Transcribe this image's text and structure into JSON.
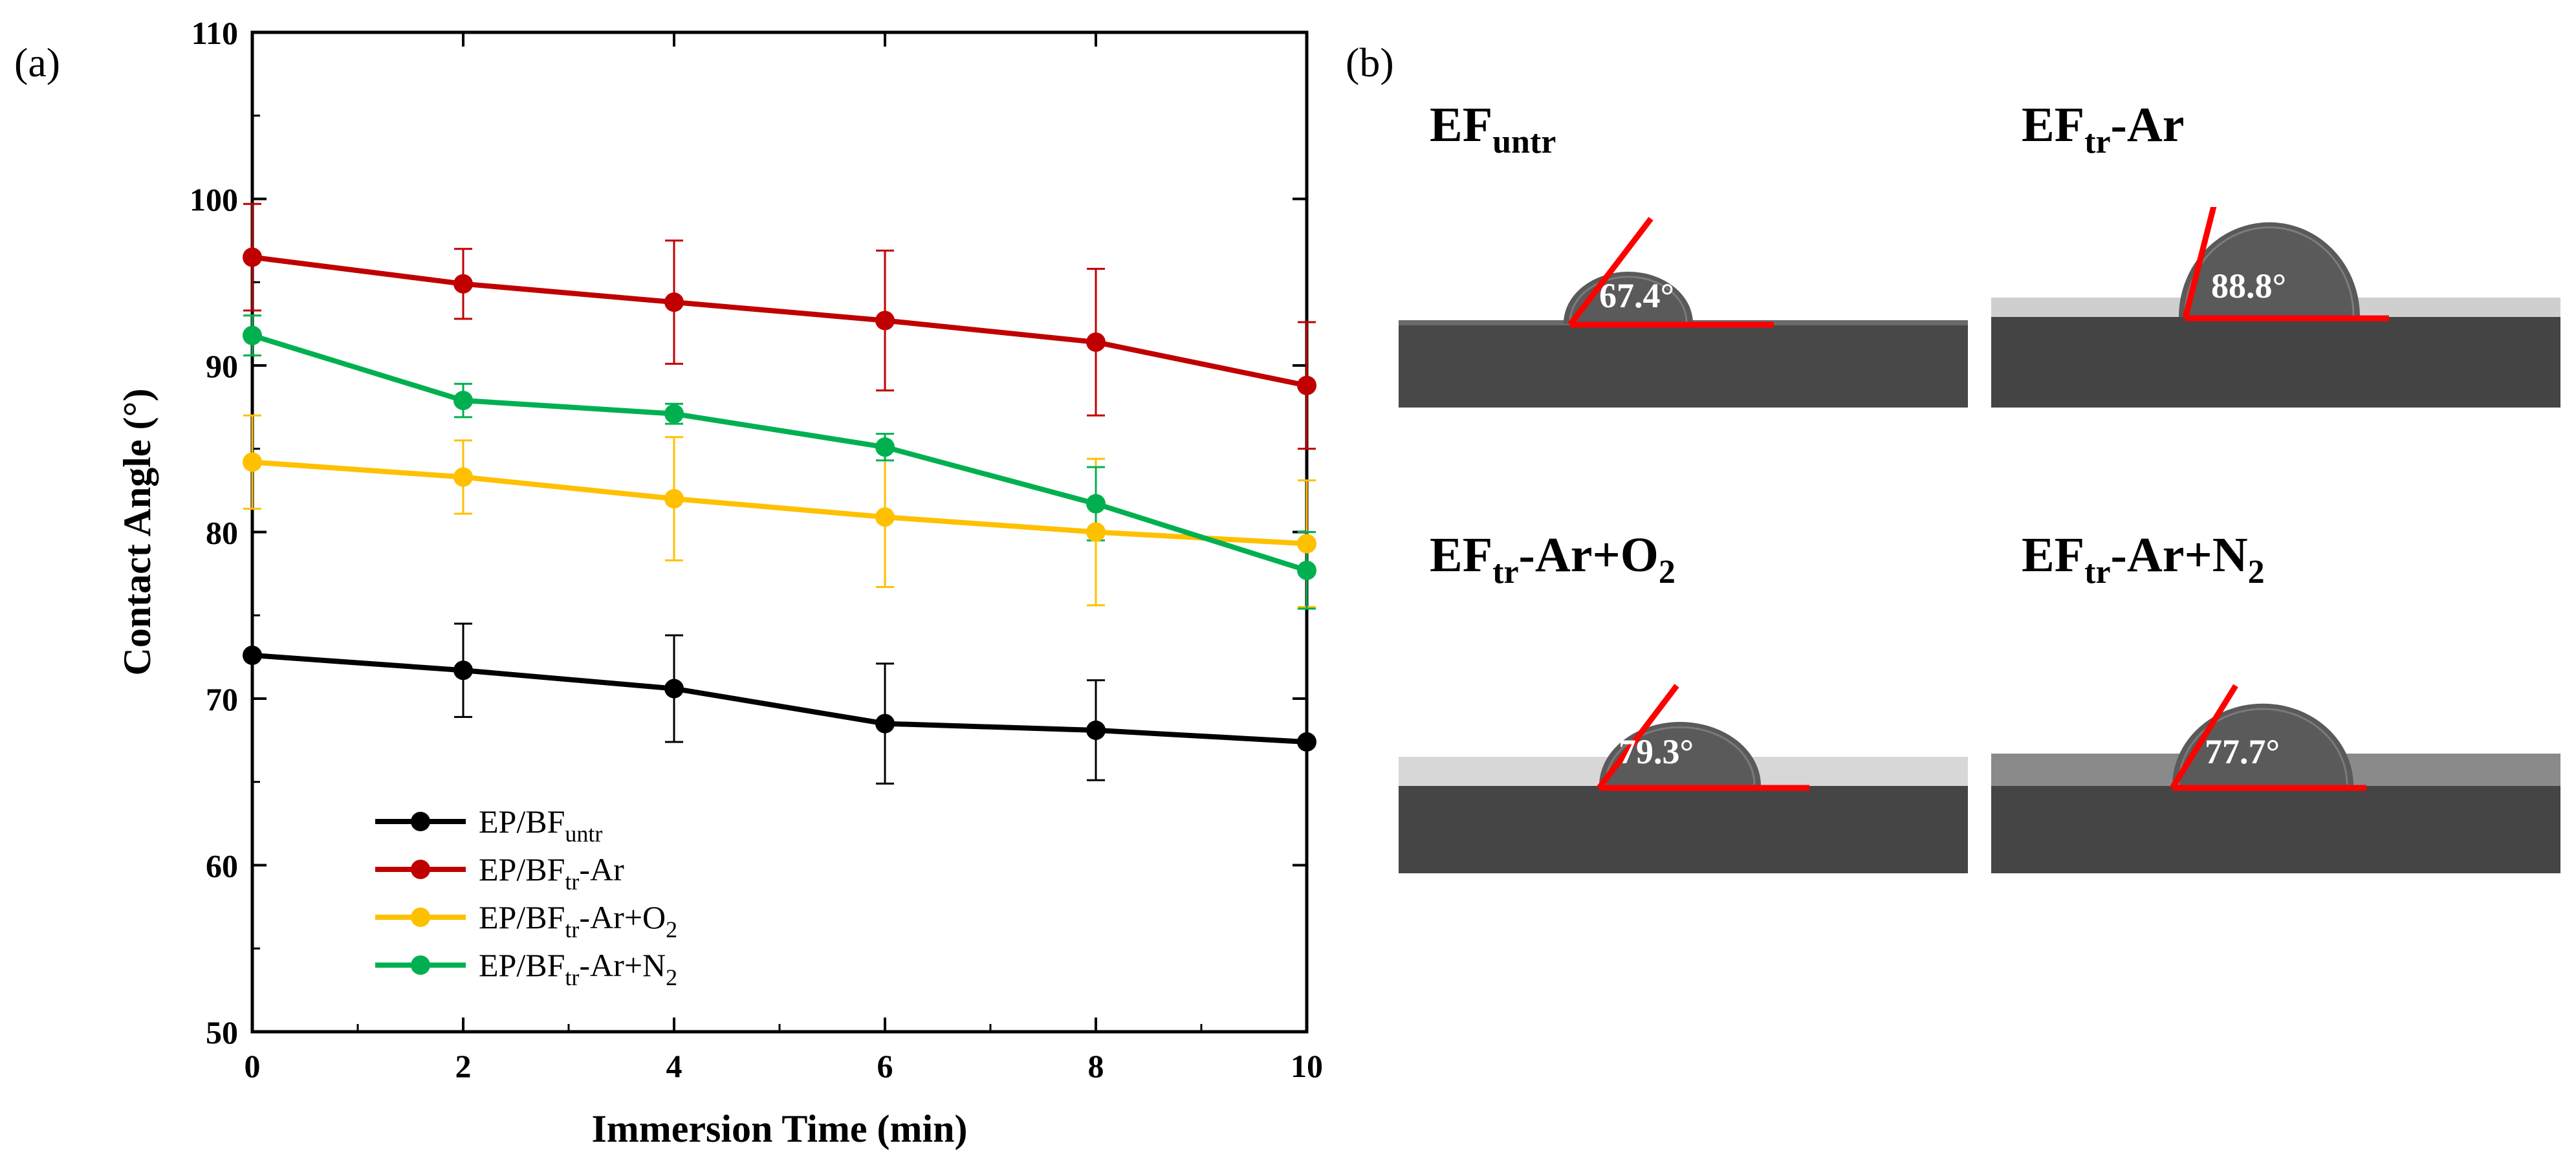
{
  "panel_a_label": "(a)",
  "panel_b_label": "(b)",
  "chart_data": {
    "type": "line",
    "title": "",
    "xlabel": "Immersion Time (min)",
    "ylabel": "Contact Angle (°)",
    "x": [
      0,
      2,
      4,
      6,
      8,
      10
    ],
    "xlim": [
      0,
      10
    ],
    "ylim": [
      50,
      110
    ],
    "xticks": [
      "0",
      "2",
      "4",
      "6",
      "8",
      "10"
    ],
    "yticks": [
      "50",
      "60",
      "70",
      "80",
      "90",
      "100",
      "110"
    ],
    "grid": false,
    "legend_position": "bottom-left",
    "series": [
      {
        "name": "EP/BF",
        "sub": "untr",
        "suffix": "",
        "suffix_sub": "",
        "color": "#000000",
        "values": [
          72.6,
          71.7,
          70.6,
          68.5,
          68.1,
          67.4
        ],
        "errors": [
          0.0,
          2.8,
          3.2,
          3.6,
          3.0,
          0.0
        ]
      },
      {
        "name": "EP/BF",
        "sub": "tr",
        "suffix": "-Ar",
        "suffix_sub": "",
        "color": "#c00000",
        "values": [
          96.5,
          94.9,
          93.8,
          92.7,
          91.4,
          88.8
        ],
        "errors": [
          3.2,
          2.1,
          3.7,
          4.2,
          4.4,
          3.8
        ]
      },
      {
        "name": "EP/BF",
        "sub": "tr",
        "suffix": "-Ar+O",
        "suffix_sub": "2",
        "color": "#ffc000",
        "values": [
          84.2,
          83.3,
          82.0,
          80.9,
          80.0,
          79.3
        ],
        "errors": [
          2.8,
          2.2,
          3.7,
          4.2,
          4.4,
          3.8
        ]
      },
      {
        "name": "EP/BF",
        "sub": "tr",
        "suffix": "-Ar+N",
        "suffix_sub": "2",
        "color": "#00b050",
        "values": [
          91.8,
          87.9,
          87.1,
          85.1,
          81.7,
          77.7
        ],
        "errors": [
          1.2,
          1.0,
          0.6,
          0.8,
          2.2,
          2.3
        ]
      }
    ]
  },
  "photos": [
    {
      "title_main": "EF",
      "title_sub": "untr",
      "title_suffix": "",
      "title_suffix_sub": "",
      "angle_label": "67.4°"
    },
    {
      "title_main": "EF",
      "title_sub": "tr",
      "title_suffix": "-Ar",
      "title_suffix_sub": "",
      "angle_label": "88.8°"
    },
    {
      "title_main": "EF",
      "title_sub": "tr",
      "title_suffix": "-Ar+O",
      "title_suffix_sub": "2",
      "angle_label": "79.3°"
    },
    {
      "title_main": "EF",
      "title_sub": "tr",
      "title_suffix": "-Ar+N",
      "title_suffix_sub": "2",
      "angle_label": "77.7°"
    }
  ],
  "colors": {
    "red_line": "#ff0000",
    "substrate": "#444444",
    "droplet": "#5a5a5a"
  }
}
